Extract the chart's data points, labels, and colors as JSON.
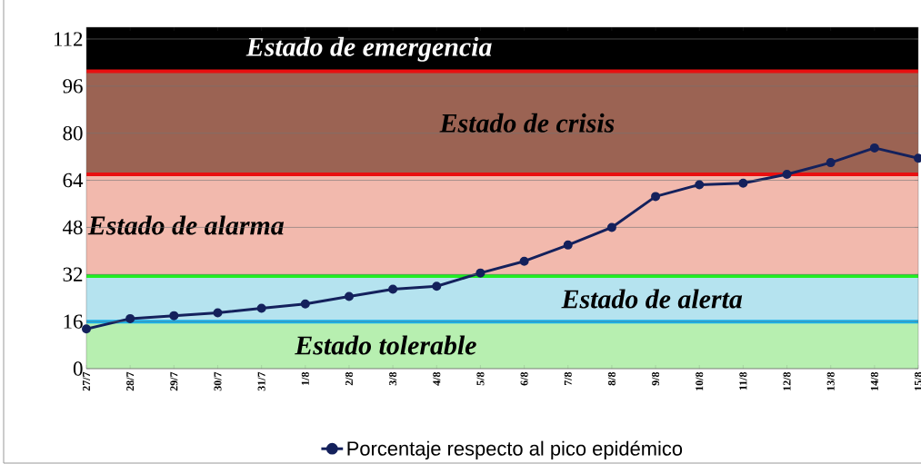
{
  "chart_data": {
    "type": "line",
    "categories": [
      "27/7",
      "28/7",
      "29/7",
      "30/7",
      "31/7",
      "1/8",
      "2/8",
      "3/8",
      "4/8",
      "5/8",
      "6/8",
      "7/8",
      "8/8",
      "9/8",
      "10/8",
      "11/8",
      "12/8",
      "13/8",
      "14/8",
      "15/8"
    ],
    "series": [
      {
        "name": "Porcentaje respecto al pico epidémico",
        "color": "#14215c",
        "values": [
          13.5,
          17,
          18,
          19,
          20.5,
          22,
          24.5,
          27,
          28,
          32.5,
          36.5,
          42,
          48,
          58.5,
          62.5,
          63,
          66,
          70,
          75,
          71.5
        ]
      }
    ],
    "ylim": [
      0,
      116
    ],
    "yticks": [
      0,
      16,
      32,
      48,
      64,
      80,
      96,
      112
    ],
    "grid": "y",
    "marker": "circle",
    "line_style": "solid",
    "legend": "bottom",
    "bands": [
      {
        "axis": "y",
        "from": 0,
        "to": 16,
        "label": "Estado tolerable",
        "color": "#b7efb0"
      },
      {
        "axis": "y",
        "from": 16,
        "to": 31.5,
        "label": "Estado de alerta",
        "color": "#b5e3ef"
      },
      {
        "axis": "y",
        "from": 31.5,
        "to": 66,
        "label": "Estado de alarma",
        "color": "#f2b9ad"
      },
      {
        "axis": "y",
        "from": 66,
        "to": 101,
        "label": "Estado de crisis",
        "color": "#9b6353"
      },
      {
        "axis": "y",
        "from": 101,
        "to": 116,
        "label": "Estado de emergencia",
        "color": "#000000"
      }
    ],
    "ref_lines": [
      {
        "axis": "y",
        "value": 16,
        "color": "#14b4f0"
      },
      {
        "axis": "y",
        "value": 31.5,
        "color": "#22ee22"
      },
      {
        "axis": "y",
        "value": 66,
        "color": "#e81010"
      },
      {
        "axis": "y",
        "value": 101,
        "color": "#e81010"
      }
    ]
  }
}
